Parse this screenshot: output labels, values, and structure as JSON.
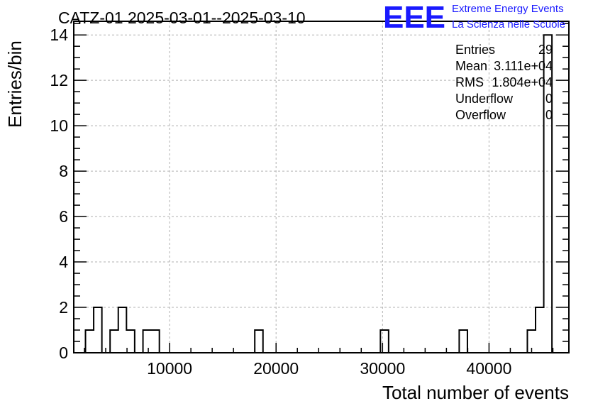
{
  "title": "CATZ-01 2025-03-01--2025-03-10",
  "logo": {
    "mark": "EEE",
    "line1": "Extreme Energy Events",
    "line2": "La Scienza nelle Scuole",
    "color": "#1a1aff"
  },
  "stats": {
    "rows": [
      {
        "label": "Entries",
        "value": "29"
      },
      {
        "label": "Mean",
        "value": "3.111e+04"
      },
      {
        "label": "RMS",
        "value": "1.804e+04"
      },
      {
        "label": "Underflow",
        "value": "0"
      },
      {
        "label": "Overflow",
        "value": "0"
      }
    ]
  },
  "chart_data": {
    "type": "bar",
    "histogram": true,
    "title": "CATZ-01 2025-03-01--2025-03-10",
    "xlabel": "Total number of events",
    "ylabel": "Entries/bin",
    "xlim": [
      1000,
      47500
    ],
    "ylim": [
      0,
      14.6
    ],
    "bin_width": 770,
    "x_ticks": [
      10000,
      20000,
      30000,
      40000
    ],
    "x_tick_labels": [
      "10000",
      "20000",
      "30000",
      "40000"
    ],
    "y_ticks": [
      0,
      2,
      4,
      6,
      8,
      10,
      12,
      14
    ],
    "y_tick_labels": [
      "0",
      "2",
      "4",
      "6",
      "8",
      "10",
      "12",
      "14"
    ],
    "grid": true,
    "bins": [
      {
        "x0": 2100,
        "count": 1
      },
      {
        "x0": 2870,
        "count": 2
      },
      {
        "x0": 3640,
        "count": 0
      },
      {
        "x0": 4410,
        "count": 1
      },
      {
        "x0": 5180,
        "count": 2
      },
      {
        "x0": 5950,
        "count": 1
      },
      {
        "x0": 7500,
        "count": 1
      },
      {
        "x0": 8270,
        "count": 1
      },
      {
        "x0": 18000,
        "count": 1
      },
      {
        "x0": 29800,
        "count": 1
      },
      {
        "x0": 37200,
        "count": 1
      },
      {
        "x0": 43600,
        "count": 1
      },
      {
        "x0": 44370,
        "count": 2
      },
      {
        "x0": 45140,
        "count": 14
      }
    ]
  }
}
